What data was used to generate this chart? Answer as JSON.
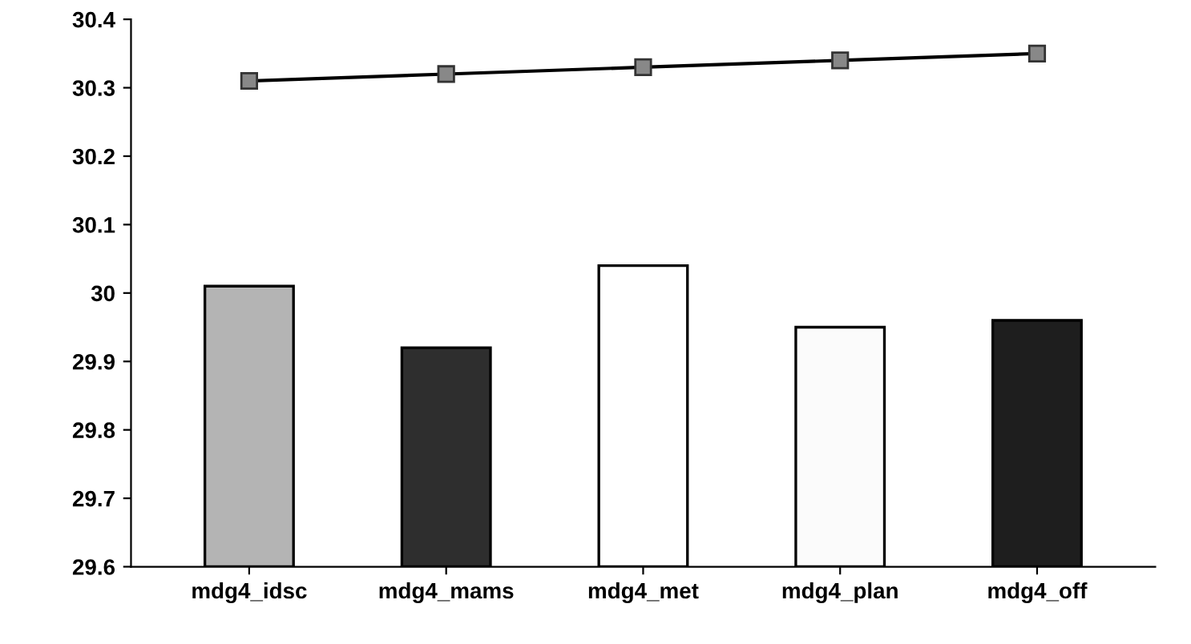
{
  "chart_data": {
    "type": "bar",
    "categories": [
      "mdg4_idsc",
      "mdg4_mams",
      "mdg4_met",
      "mdg4_plan",
      "mdg4_off"
    ],
    "series": [
      {
        "colors": [
          "#b4b4b4",
          "#2e2e2e",
          "#ffffff",
          "#fbfbfb",
          "#1e1e1e"
        ],
        "values": [
          30.01,
          29.92,
          30.04,
          29.95,
          29.96
        ]
      },
      {
        "type": "line",
        "color": "#000000",
        "marker": "square",
        "values": [
          30.31,
          30.32,
          30.33,
          30.34,
          30.35
        ]
      }
    ],
    "ylim": [
      29.6,
      30.4
    ],
    "yticks": [
      29.6,
      29.7,
      29.8,
      29.9,
      30,
      30.1,
      30.2,
      30.3,
      30.4
    ],
    "grid": false
  }
}
